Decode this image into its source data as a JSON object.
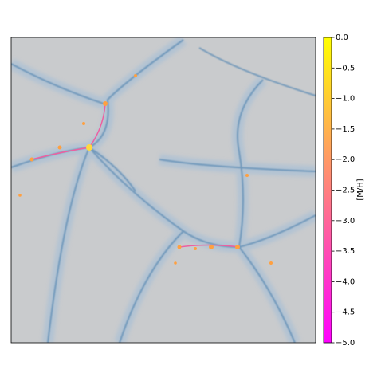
{
  "chart_data": {
    "type": "image",
    "colorbar_label": "[M/H]",
    "colormap": [
      "#ff00ff",
      "#ffff00"
    ],
    "clim": [
      -5.0,
      0.0
    ],
    "colorbar_ticks": [
      {
        "value": 0.0,
        "label": "0.0"
      },
      {
        "value": -0.5,
        "label": "−0.5"
      },
      {
        "value": -1.0,
        "label": "−1.0"
      },
      {
        "value": -1.5,
        "label": "−1.5"
      },
      {
        "value": -2.0,
        "label": "−2.0"
      },
      {
        "value": -2.5,
        "label": "−2.5"
      },
      {
        "value": -3.0,
        "label": "−3.0"
      },
      {
        "value": -3.5,
        "label": "−3.5"
      },
      {
        "value": -4.0,
        "label": "−4.0"
      },
      {
        "value": -4.5,
        "label": "−4.5"
      },
      {
        "value": -5.0,
        "label": "−5.0"
      }
    ]
  }
}
